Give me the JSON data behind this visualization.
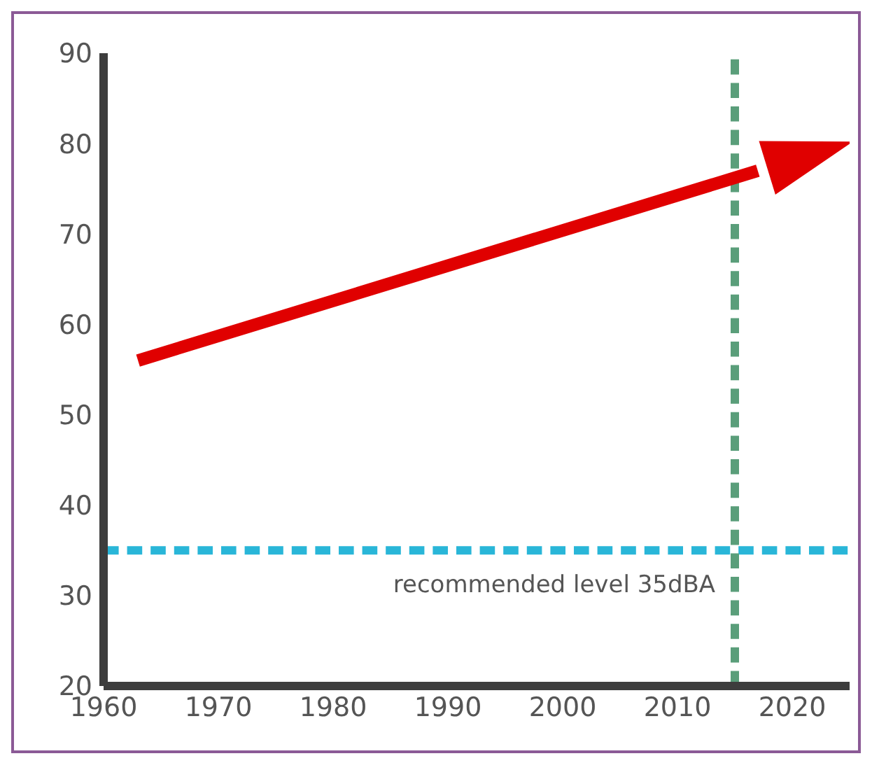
{
  "chart_data": {
    "type": "line",
    "x": [
      1963,
      2017
    ],
    "series": [
      {
        "color": "#e00000",
        "values": [
          56,
          77
        ]
      }
    ],
    "xlim": [
      1960,
      2025
    ],
    "xticks": [
      1960,
      1970,
      1980,
      1990,
      2000,
      2010,
      2020
    ],
    "ylim": [
      20,
      90
    ],
    "yticks": [
      20,
      30,
      40,
      50,
      60,
      70,
      80,
      90
    ],
    "grid": false,
    "legend": false,
    "marker": "none",
    "line_style": "solid",
    "ref_lines": [
      {
        "axis": "y",
        "value": 35,
        "label": "recommended level 35dBA",
        "color": "#29b6d8",
        "line_style": "dashed"
      },
      {
        "axis": "x",
        "value": 2015,
        "color": "#5a9e7a",
        "line_style": "dashed"
      }
    ]
  }
}
